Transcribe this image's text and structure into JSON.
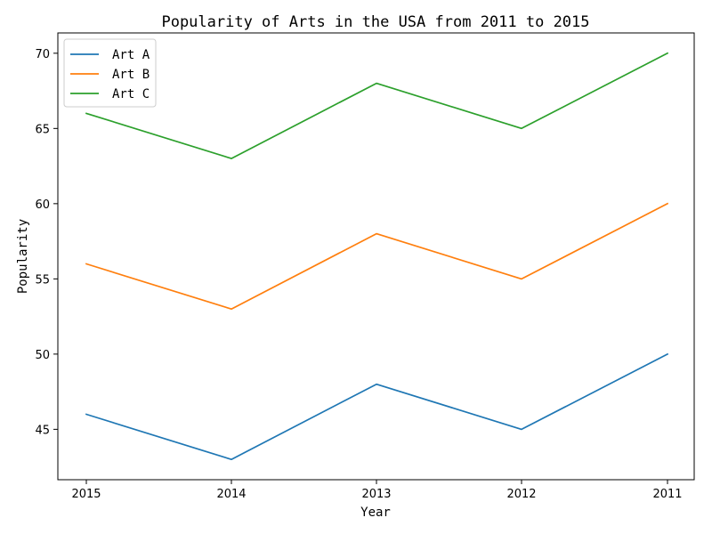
{
  "chart_data": {
    "type": "line",
    "title": "Popularity of Arts in the USA from 2011 to 2015",
    "xlabel": "Year",
    "ylabel": "Popularity",
    "categories": [
      "2015",
      "2014",
      "2013",
      "2012",
      "2011"
    ],
    "yticks": [
      45,
      50,
      55,
      60,
      65,
      70
    ],
    "ylim": [
      41.65,
      71.35
    ],
    "grid": false,
    "legend_position": "upper-left",
    "series": [
      {
        "name": "Art A",
        "color": "#1f77b4",
        "values": [
          46,
          43,
          48,
          45,
          50
        ]
      },
      {
        "name": "Art B",
        "color": "#ff7f0e",
        "values": [
          56,
          53,
          58,
          55,
          60
        ]
      },
      {
        "name": "Art C",
        "color": "#2ca02c",
        "values": [
          66,
          63,
          68,
          65,
          70
        ]
      }
    ]
  }
}
